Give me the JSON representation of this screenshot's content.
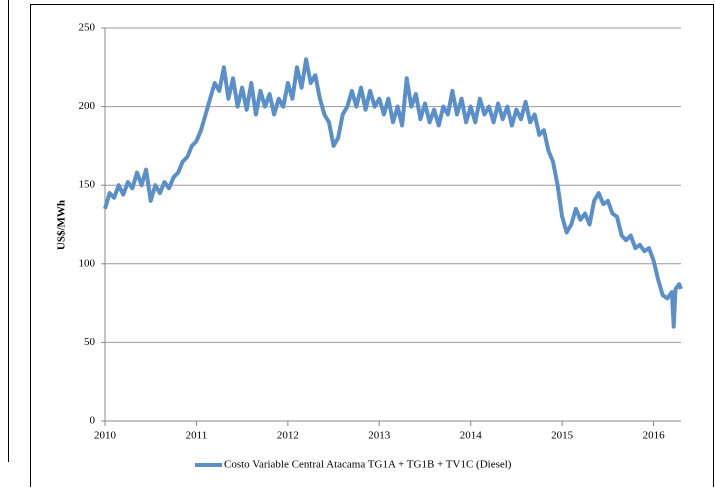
{
  "chart_data": {
    "type": "line",
    "y_label": "US$/MWh",
    "x": [
      2010.0,
      2010.05,
      2010.1,
      2010.15,
      2010.2,
      2010.25,
      2010.3,
      2010.35,
      2010.4,
      2010.45,
      2010.5,
      2010.55,
      2010.6,
      2010.65,
      2010.7,
      2010.75,
      2010.8,
      2010.85,
      2010.9,
      2010.95,
      2011.0,
      2011.05,
      2011.1,
      2011.15,
      2011.2,
      2011.25,
      2011.3,
      2011.35,
      2011.4,
      2011.45,
      2011.5,
      2011.55,
      2011.6,
      2011.65,
      2011.7,
      2011.75,
      2011.8,
      2011.85,
      2011.9,
      2011.95,
      2012.0,
      2012.05,
      2012.1,
      2012.15,
      2012.2,
      2012.25,
      2012.3,
      2012.35,
      2012.4,
      2012.45,
      2012.5,
      2012.55,
      2012.6,
      2012.65,
      2012.7,
      2012.75,
      2012.8,
      2012.85,
      2012.9,
      2012.95,
      2013.0,
      2013.05,
      2013.1,
      2013.15,
      2013.2,
      2013.25,
      2013.3,
      2013.35,
      2013.4,
      2013.45,
      2013.5,
      2013.55,
      2013.6,
      2013.65,
      2013.7,
      2013.75,
      2013.8,
      2013.85,
      2013.9,
      2013.95,
      2014.0,
      2014.05,
      2014.1,
      2014.15,
      2014.2,
      2014.25,
      2014.3,
      2014.35,
      2014.4,
      2014.45,
      2014.5,
      2014.55,
      2014.6,
      2014.65,
      2014.7,
      2014.75,
      2014.8,
      2014.85,
      2014.9,
      2014.95,
      2015.0,
      2015.05,
      2015.1,
      2015.15,
      2015.2,
      2015.25,
      2015.3,
      2015.35,
      2015.4,
      2015.45,
      2015.5,
      2015.55,
      2015.6,
      2015.65,
      2015.7,
      2015.75,
      2015.8,
      2015.85,
      2015.9,
      2015.95,
      2016.0,
      2016.05,
      2016.1,
      2016.15,
      2016.2,
      2016.22,
      2016.24,
      2016.28,
      2016.3
    ],
    "series": [
      {
        "name": "Costo Variable Central Atacama TG1A + TG1B + TV1C (Diesel)",
        "color": "#5b8fc9",
        "values": [
          135,
          145,
          142,
          150,
          144,
          152,
          148,
          158,
          150,
          160,
          140,
          150,
          145,
          152,
          148,
          155,
          158,
          165,
          168,
          175,
          178,
          185,
          195,
          205,
          215,
          210,
          225,
          205,
          218,
          200,
          212,
          198,
          215,
          195,
          210,
          200,
          208,
          195,
          205,
          200,
          215,
          205,
          225,
          212,
          230,
          215,
          220,
          205,
          195,
          190,
          175,
          180,
          195,
          200,
          210,
          200,
          212,
          198,
          210,
          200,
          205,
          195,
          205,
          190,
          200,
          188,
          218,
          200,
          208,
          192,
          202,
          190,
          198,
          188,
          200,
          195,
          210,
          195,
          205,
          190,
          200,
          190,
          205,
          195,
          200,
          190,
          202,
          192,
          200,
          188,
          198,
          192,
          203,
          190,
          195,
          182,
          185,
          172,
          165,
          150,
          130,
          120,
          125,
          135,
          128,
          132,
          125,
          140,
          145,
          138,
          140,
          132,
          130,
          118,
          115,
          118,
          110,
          112,
          108,
          110,
          102,
          90,
          80,
          78,
          82,
          60,
          84,
          87,
          84
        ]
      }
    ],
    "xlim": [
      2010,
      2016.3
    ],
    "xticks": [
      2010,
      2011,
      2012,
      2013,
      2014,
      2015,
      2016
    ],
    "ylim": [
      0,
      250
    ],
    "yticks": [
      0,
      50,
      100,
      150,
      200,
      250
    ],
    "grid": true
  }
}
